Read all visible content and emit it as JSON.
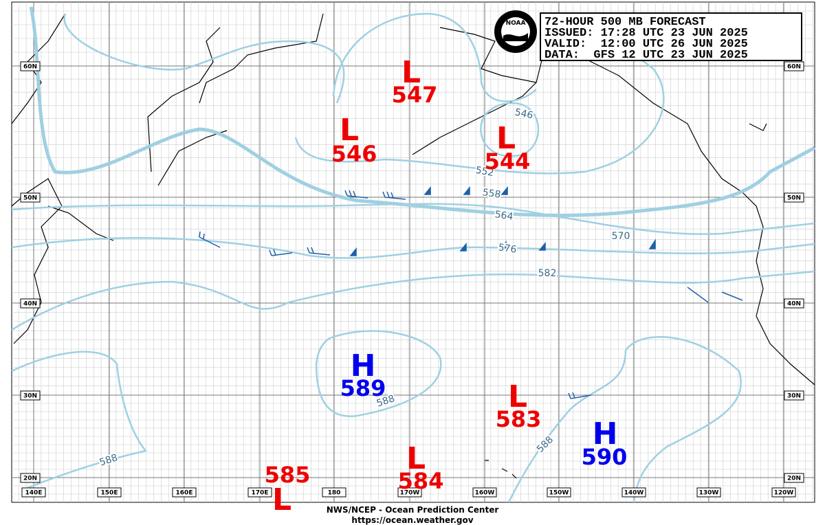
{
  "header": {
    "lines": [
      "72-HOUR 500 MB FORECAST",
      "ISSUED: 17:28 UTC 23 JUN 2025",
      "VALID:  12:00 UTC 26 JUN 2025",
      "DATA:  GFS 12 UTC 23 JUN 2025"
    ],
    "logo": "NOAA"
  },
  "centers": [
    {
      "symbol": "L",
      "value": "547"
    },
    {
      "symbol": "L",
      "value": "546"
    },
    {
      "symbol": "L",
      "value": "544"
    },
    {
      "symbol": "H",
      "value": "589"
    },
    {
      "symbol": "L",
      "value": "583"
    },
    {
      "symbol": "H",
      "value": "590"
    },
    {
      "symbol": "L",
      "value": "584"
    },
    {
      "symbol": "L",
      "value": "585"
    }
  ],
  "contour_labels": [
    "546",
    "552",
    "558",
    "564",
    "570",
    "576",
    "582",
    "588",
    "588",
    "588"
  ],
  "latitude_labels": [
    "60N",
    "50N",
    "40N",
    "30N",
    "20N"
  ],
  "longitude_labels": [
    "140E",
    "150E",
    "160E",
    "170E",
    "180",
    "170W",
    "160W",
    "150W",
    "140W",
    "130W",
    "120W"
  ],
  "footer": {
    "line1": "NWS/NCEP - Ocean Prediction Center",
    "line2": "https://ocean.weather.gov"
  }
}
